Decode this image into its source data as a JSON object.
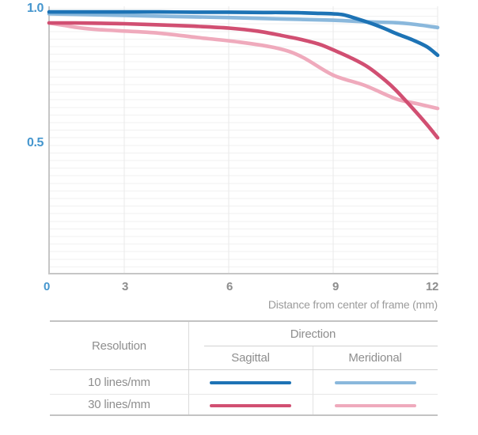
{
  "colors": {
    "accent": "#4596ce"
  },
  "chart_data": {
    "type": "line",
    "title": "",
    "xlabel": "Distance from center of frame (mm)",
    "ylabel": "",
    "xlim": [
      0,
      12
    ],
    "ylim": [
      0,
      1.05
    ],
    "x_ticks": [
      0,
      3,
      6,
      9,
      12
    ],
    "x_tick_labels": [
      "0",
      "3",
      "6",
      "9",
      "12"
    ],
    "y_ticks": [
      1.0,
      0.5
    ],
    "y_tick_labels": [
      "1.0",
      "0.5"
    ],
    "grid": true,
    "legend_position": "bottom-table",
    "series": [
      {
        "name": "10 lines/mm Sagittal",
        "resolution": "10 lines/mm",
        "direction": "Sagittal",
        "color": "#1d73b5",
        "x": [
          0,
          1,
          2,
          3,
          4,
          5,
          6,
          7,
          7.5,
          8,
          8.5,
          9,
          9.3,
          9.7,
          10.1,
          10.5,
          10.8,
          11.3,
          11.7,
          12
        ],
        "y": [
          0.988,
          0.988,
          0.988,
          0.988,
          0.988,
          0.987,
          0.987,
          0.986,
          0.986,
          0.985,
          0.983,
          0.981,
          0.977,
          0.962,
          0.945,
          0.925,
          0.908,
          0.883,
          0.858,
          0.827
        ]
      },
      {
        "name": "10 lines/mm Meridional",
        "resolution": "10 lines/mm",
        "direction": "Meridional",
        "color": "#8ab8dc",
        "x": [
          0,
          1.5,
          3,
          4.5,
          6,
          7.5,
          9,
          10,
          10.8,
          11.4,
          12
        ],
        "y": [
          0.981,
          0.978,
          0.975,
          0.971,
          0.967,
          0.962,
          0.957,
          0.951,
          0.948,
          0.941,
          0.93
        ]
      },
      {
        "name": "30 lines/mm Sagittal",
        "resolution": "30 lines/mm",
        "direction": "Sagittal",
        "color": "#d14f72",
        "x": [
          0,
          1,
          2,
          3,
          4,
          5,
          6,
          6.8,
          7.5,
          8.1,
          8.6,
          9,
          9.5,
          10,
          10.5,
          10.8,
          11.3,
          11.7,
          12
        ],
        "y": [
          0.947,
          0.947,
          0.946,
          0.944,
          0.94,
          0.935,
          0.928,
          0.917,
          0.901,
          0.885,
          0.868,
          0.847,
          0.818,
          0.783,
          0.733,
          0.697,
          0.627,
          0.568,
          0.52
        ]
      },
      {
        "name": "30 lines/mm Meridional",
        "resolution": "30 lines/mm",
        "direction": "Meridional",
        "color": "#efaabc",
        "x": [
          0,
          0.6,
          1.2,
          2,
          2.8,
          4,
          5.1,
          6.3,
          7.4,
          8.1,
          9,
          9.9,
          10.8,
          11.4,
          12
        ],
        "y": [
          0.947,
          0.938,
          0.929,
          0.922,
          0.918,
          0.909,
          0.893,
          0.876,
          0.853,
          0.821,
          0.753,
          0.715,
          0.665,
          0.647,
          0.629
        ]
      }
    ]
  },
  "legend_table": {
    "resolution_header": "Resolution",
    "direction_header": "Direction",
    "sagittal_header": "Sagittal",
    "meridional_header": "Meridional",
    "rows": [
      {
        "label": "10 lines/mm"
      },
      {
        "label": "30 lines/mm"
      }
    ]
  }
}
